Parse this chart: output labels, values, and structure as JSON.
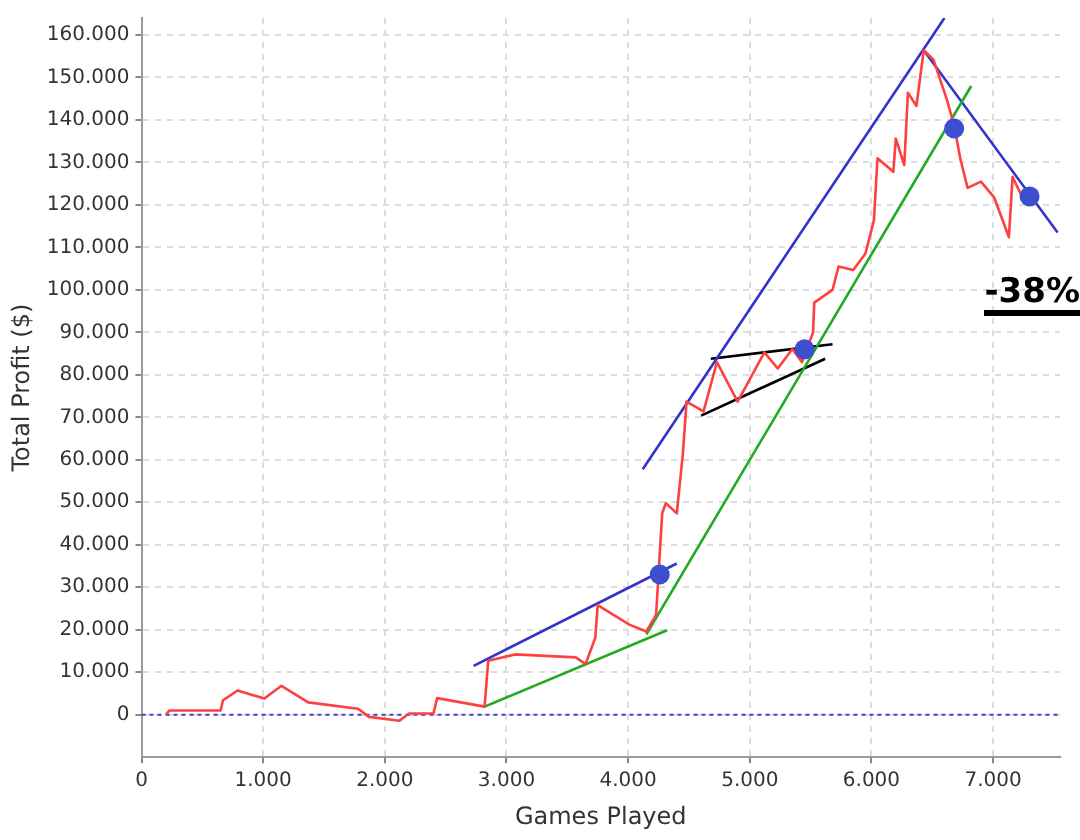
{
  "chart_data": {
    "type": "line",
    "xlabel": "Games Played",
    "ylabel": "Total Profit ($)",
    "xlim": [
      0,
      7550
    ],
    "ylim": [
      -10000,
      164000
    ],
    "xticks": [
      {
        "value": 0,
        "label": "0"
      },
      {
        "value": 1000,
        "label": "1.000"
      },
      {
        "value": 2000,
        "label": "2.000"
      },
      {
        "value": 3000,
        "label": "3.000"
      },
      {
        "value": 4000,
        "label": "4.000"
      },
      {
        "value": 5000,
        "label": "5.000"
      },
      {
        "value": 6000,
        "label": "6.000"
      },
      {
        "value": 7000,
        "label": "7.000"
      }
    ],
    "yticks": [
      {
        "value": 0,
        "label": "0"
      },
      {
        "value": 10000,
        "label": "10.000"
      },
      {
        "value": 20000,
        "label": "20.000"
      },
      {
        "value": 30000,
        "label": "30.000"
      },
      {
        "value": 40000,
        "label": "40.000"
      },
      {
        "value": 50000,
        "label": "50.000"
      },
      {
        "value": 60000,
        "label": "60.000"
      },
      {
        "value": 70000,
        "label": "70.000"
      },
      {
        "value": 80000,
        "label": "80.000"
      },
      {
        "value": 90000,
        "label": "90.000"
      },
      {
        "value": 100000,
        "label": "100.000"
      },
      {
        "value": 110000,
        "label": "110.000"
      },
      {
        "value": 120000,
        "label": "120.000"
      },
      {
        "value": 130000,
        "label": "130.000"
      },
      {
        "value": 140000,
        "label": "140.000"
      },
      {
        "value": 150000,
        "label": "150.000"
      },
      {
        "value": 160000,
        "label": "160.000"
      }
    ],
    "grid": true,
    "legend": false,
    "marker": "none",
    "annotations": [
      "-38%"
    ],
    "ref_lines": [
      {
        "axis": "y",
        "value": 0,
        "color": "#4040c0",
        "line_style": "dotted"
      }
    ],
    "series": [
      {
        "type": "line",
        "color": "#ff4040",
        "x": [
          200,
          230,
          650,
          670,
          790,
          1010,
          1150,
          1370,
          1780,
          1870,
          2120,
          2200,
          2400,
          2430,
          2820,
          2850,
          3070,
          3570,
          3650,
          3730,
          3750,
          4010,
          4150,
          4230,
          4280,
          4310,
          4400,
          4450,
          4480,
          4620,
          4730,
          4900,
          5120,
          5230,
          5350,
          5430,
          5520,
          5530,
          5680,
          5730,
          5850,
          5950,
          6020,
          6050,
          6180,
          6200,
          6270,
          6300,
          6370,
          6430,
          6510,
          6620,
          6680,
          6730,
          6790,
          6900,
          7010,
          7130,
          7160,
          7230,
          7290
        ],
        "values": [
          0,
          1000,
          1000,
          3400,
          5700,
          3800,
          6800,
          2900,
          1400,
          -500,
          -1400,
          300,
          300,
          3900,
          1900,
          12700,
          14200,
          13500,
          11900,
          18100,
          25800,
          21200,
          19600,
          23500,
          47400,
          49800,
          47400,
          61400,
          73700,
          71400,
          83000,
          73700,
          85300,
          81500,
          86100,
          83000,
          90000,
          97000,
          100000,
          105500,
          104700,
          108500,
          116300,
          131000,
          127800,
          135600,
          129400,
          146400,
          143300,
          156400,
          154200,
          144800,
          138700,
          131000,
          124000,
          125500,
          121700,
          112400,
          126600,
          122400,
          122900
        ]
      },
      {
        "type": "line",
        "color": "#3333cc",
        "x": [
          2730,
          4400
        ],
        "values": [
          11500,
          35600
        ]
      },
      {
        "type": "line",
        "color": "#22aa22",
        "x": [
          2820,
          4320
        ],
        "values": [
          1900,
          19900
        ]
      },
      {
        "type": "line",
        "color": "#22aa22",
        "x": [
          4150,
          6820
        ],
        "values": [
          18900,
          148000
        ]
      },
      {
        "type": "line",
        "color": "#3333cc",
        "x": [
          4120,
          6600
        ],
        "values": [
          57800,
          164000
        ]
      },
      {
        "type": "line",
        "color": "#3333cc",
        "x": [
          6430,
          7530
        ],
        "values": [
          156400,
          113500
        ]
      },
      {
        "type": "line",
        "color": "#000000",
        "x": [
          4680,
          5680
        ],
        "values": [
          83800,
          87200
        ]
      },
      {
        "type": "line",
        "color": "#000000",
        "x": [
          4600,
          5620
        ],
        "values": [
          70400,
          83800
        ]
      },
      {
        "type": "scatter",
        "marker": "circle",
        "color": "#3b4fd0",
        "x": [
          4260,
          5450,
          6680,
          7300
        ],
        "values": [
          33000,
          86000,
          138000,
          122000
        ]
      }
    ]
  }
}
